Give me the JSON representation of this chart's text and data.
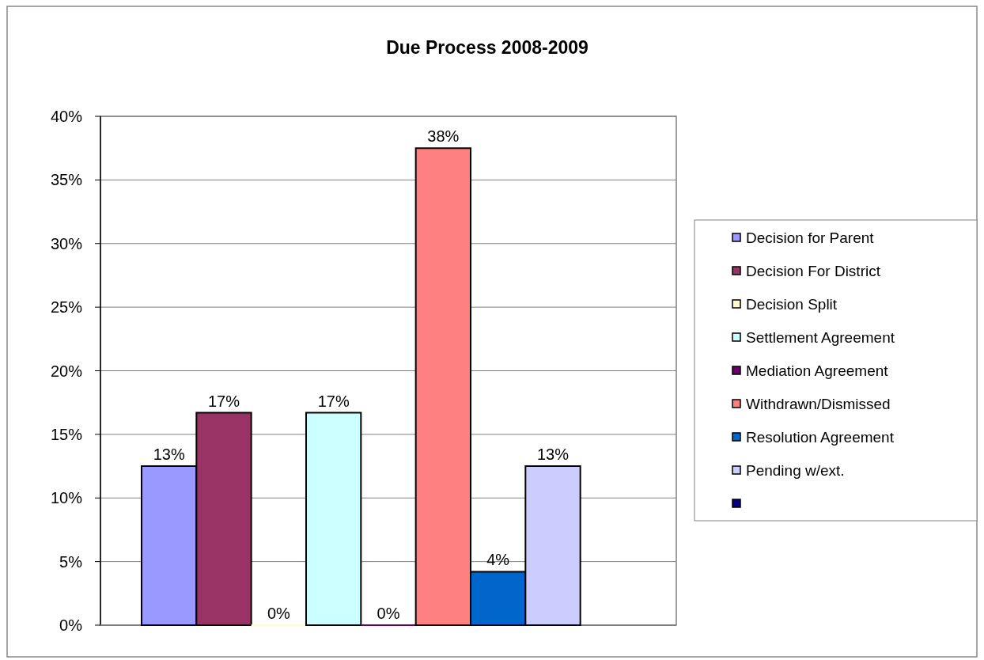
{
  "chart_data": {
    "type": "bar",
    "title": "Due Process 2008-2009",
    "categories": [
      null
    ],
    "series": [
      {
        "name": "Decision for Parent",
        "color": "#9999ff",
        "values": [
          12.5
        ],
        "value_labels": [
          "13%"
        ]
      },
      {
        "name": "Decision For District",
        "color": "#993366",
        "values": [
          16.7
        ],
        "value_labels": [
          "17%"
        ]
      },
      {
        "name": "Decision Split",
        "color": "#ffffcc",
        "values": [
          0
        ],
        "value_labels": [
          "0%"
        ]
      },
      {
        "name": "Settlement Agreement",
        "color": "#ccffff",
        "values": [
          16.7
        ],
        "value_labels": [
          "17%"
        ]
      },
      {
        "name": "Mediation Agreement",
        "color": "#660066",
        "values": [
          0
        ],
        "value_labels": [
          "0%"
        ]
      },
      {
        "name": "Withdrawn/Dismissed",
        "color": "#ff8080",
        "values": [
          37.5
        ],
        "value_labels": [
          "38%"
        ]
      },
      {
        "name": "Resolution Agreement",
        "color": "#0066cc",
        "values": [
          4.2
        ],
        "value_labels": [
          "4%"
        ]
      },
      {
        "name": "Pending w/ext.",
        "color": "#ccccff",
        "values": [
          12.5
        ],
        "value_labels": [
          "13%"
        ]
      },
      {
        "color": "#000080",
        "values": [
          null
        ]
      }
    ],
    "ylim": [
      0,
      40
    ],
    "yticks": [
      {
        "value": 0,
        "label": "0%"
      },
      {
        "value": 5,
        "label": "5%"
      },
      {
        "value": 10,
        "label": "10%"
      },
      {
        "value": 15,
        "label": "15%"
      },
      {
        "value": 20,
        "label": "20%"
      },
      {
        "value": 25,
        "label": "25%"
      },
      {
        "value": 30,
        "label": "30%"
      },
      {
        "value": 35,
        "label": "35%"
      },
      {
        "value": 40,
        "label": "40%"
      }
    ],
    "grid": "y",
    "legend": "right"
  }
}
